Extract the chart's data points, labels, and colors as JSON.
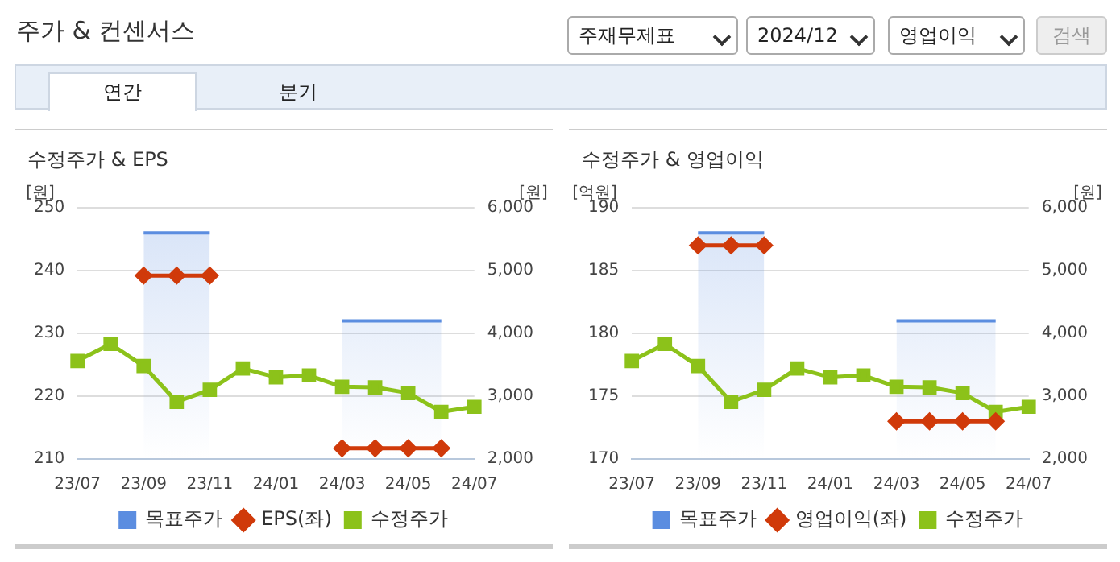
{
  "chart_data": [
    {
      "type": "other",
      "title": "주가 & 컨센서스",
      "annotations": [
        "주재무제표",
        "2024/12",
        "영업이익",
        "검색",
        "연간",
        "분기"
      ]
    },
    {
      "type": "line",
      "title": "수정주가 & EPS",
      "ylabel": "[원]",
      "y2label": "[원]",
      "categories": [
        "23/07",
        null,
        "23/09",
        null,
        "23/11",
        null,
        "24/01",
        null,
        "24/03",
        null,
        "24/05",
        null,
        "24/07"
      ],
      "series": [
        {
          "name": "목표주가",
          "type": "area",
          "axis": "y2",
          "color": "#5b8de0",
          "marker": "none",
          "values": [
            null,
            null,
            5600,
            5600,
            5600,
            null,
            null,
            null,
            4200,
            4200,
            4200,
            4200,
            null
          ]
        },
        {
          "name": "EPS(좌)",
          "type": "line",
          "axis": "y",
          "color": "#d03a0a",
          "marker": "diamond",
          "values": [
            null,
            null,
            239.2,
            239.2,
            239.2,
            null,
            null,
            null,
            211.7,
            211.7,
            211.7,
            211.7,
            null
          ]
        },
        {
          "name": "수정주가",
          "type": "line",
          "axis": "y2",
          "color": "#8cc21a",
          "marker": "square",
          "values": [
            3560,
            3830,
            3480,
            2910,
            3100,
            3440,
            3300,
            3330,
            3150,
            3140,
            3050,
            2750,
            2830
          ]
        }
      ],
      "ylim": [
        210,
        250
      ],
      "yticks": [
        210,
        220,
        230,
        240,
        250
      ],
      "y2lim": [
        2000,
        6000
      ],
      "y2ticks": [
        {
          "value": 2000,
          "label": "2,000"
        },
        {
          "value": 3000,
          "label": "3,000"
        },
        {
          "value": 4000,
          "label": "4,000"
        },
        {
          "value": 5000,
          "label": "5,000"
        },
        {
          "value": 6000,
          "label": "6,000"
        }
      ],
      "grid": "y",
      "legend": "bottom"
    },
    {
      "type": "line",
      "title": "수정주가 & 영업이익",
      "ylabel": "[억원]",
      "y2label": "[원]",
      "categories": [
        "23/07",
        null,
        "23/09",
        null,
        "23/11",
        null,
        "24/01",
        null,
        "24/03",
        null,
        "24/05",
        null,
        "24/07"
      ],
      "series": [
        {
          "name": "목표주가",
          "type": "area",
          "axis": "y2",
          "color": "#5b8de0",
          "marker": "none",
          "values": [
            null,
            null,
            5600,
            5600,
            5600,
            null,
            null,
            null,
            4200,
            4200,
            4200,
            4200,
            null
          ]
        },
        {
          "name": "영업이익(좌)",
          "type": "line",
          "axis": "y",
          "color": "#d03a0a",
          "marker": "diamond",
          "values": [
            null,
            null,
            187,
            187,
            187,
            null,
            null,
            null,
            173,
            173,
            173,
            173,
            null
          ]
        },
        {
          "name": "수정주가",
          "type": "line",
          "axis": "y2",
          "color": "#8cc21a",
          "marker": "square",
          "values": [
            3560,
            3830,
            3480,
            2910,
            3100,
            3440,
            3300,
            3330,
            3150,
            3140,
            3050,
            2750,
            2830
          ]
        }
      ],
      "ylim": [
        170,
        190
      ],
      "yticks": [
        170,
        175,
        180,
        185,
        190
      ],
      "y2lim": [
        2000,
        6000
      ],
      "y2ticks": [
        {
          "value": 2000,
          "label": "2,000"
        },
        {
          "value": 3000,
          "label": "3,000"
        },
        {
          "value": 4000,
          "label": "4,000"
        },
        {
          "value": 5000,
          "label": "5,000"
        },
        {
          "value": 6000,
          "label": "6,000"
        }
      ],
      "grid": "y",
      "legend": "bottom"
    }
  ]
}
